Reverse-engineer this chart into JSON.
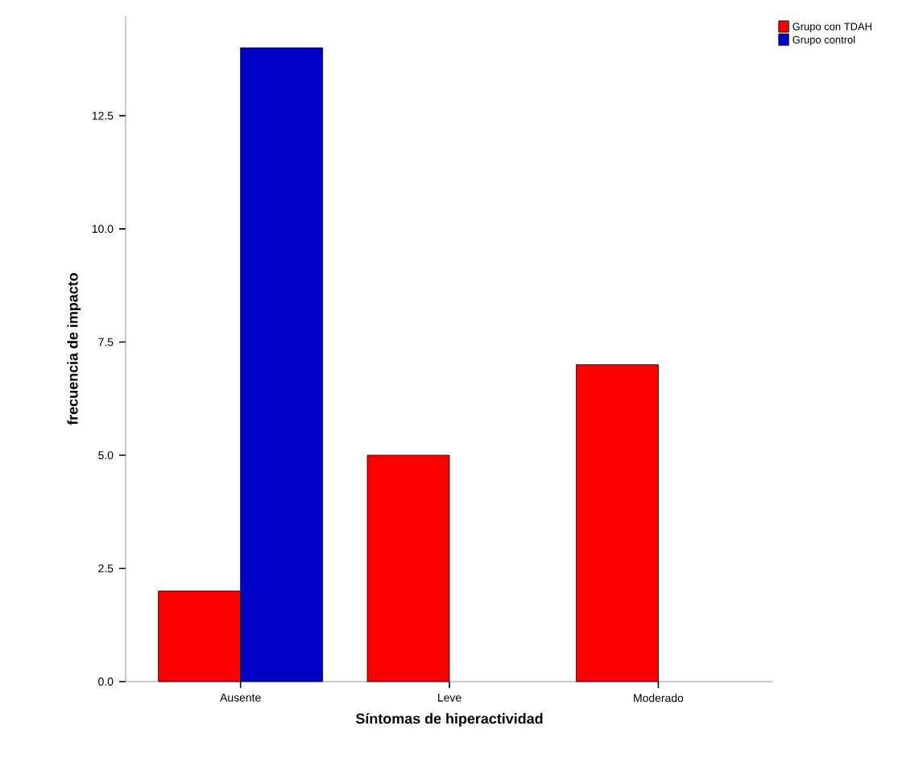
{
  "chart_data": {
    "type": "bar",
    "xlabel": "Síntomas de hiperactividad",
    "ylabel": "frecuencia de impacto",
    "categories": [
      "Ausente",
      "Leve",
      "Moderado"
    ],
    "series": [
      {
        "name": "Grupo con TDAH",
        "color": "#ff0000",
        "values": [
          2,
          5,
          7
        ]
      },
      {
        "name": "Grupo control",
        "color": "#0000c8",
        "values": [
          14,
          null,
          null
        ]
      }
    ],
    "ylim": [
      0,
      14.7
    ],
    "yticks": [
      {
        "value": 0,
        "label": "0.0"
      },
      {
        "value": 2.5,
        "label": "2.5"
      },
      {
        "value": 5,
        "label": "5.0"
      },
      {
        "value": 7.5,
        "label": "7.5"
      },
      {
        "value": 10,
        "label": "10.0"
      },
      {
        "value": 12.5,
        "label": "12.5"
      }
    ],
    "grid": false,
    "legend": "top right"
  }
}
